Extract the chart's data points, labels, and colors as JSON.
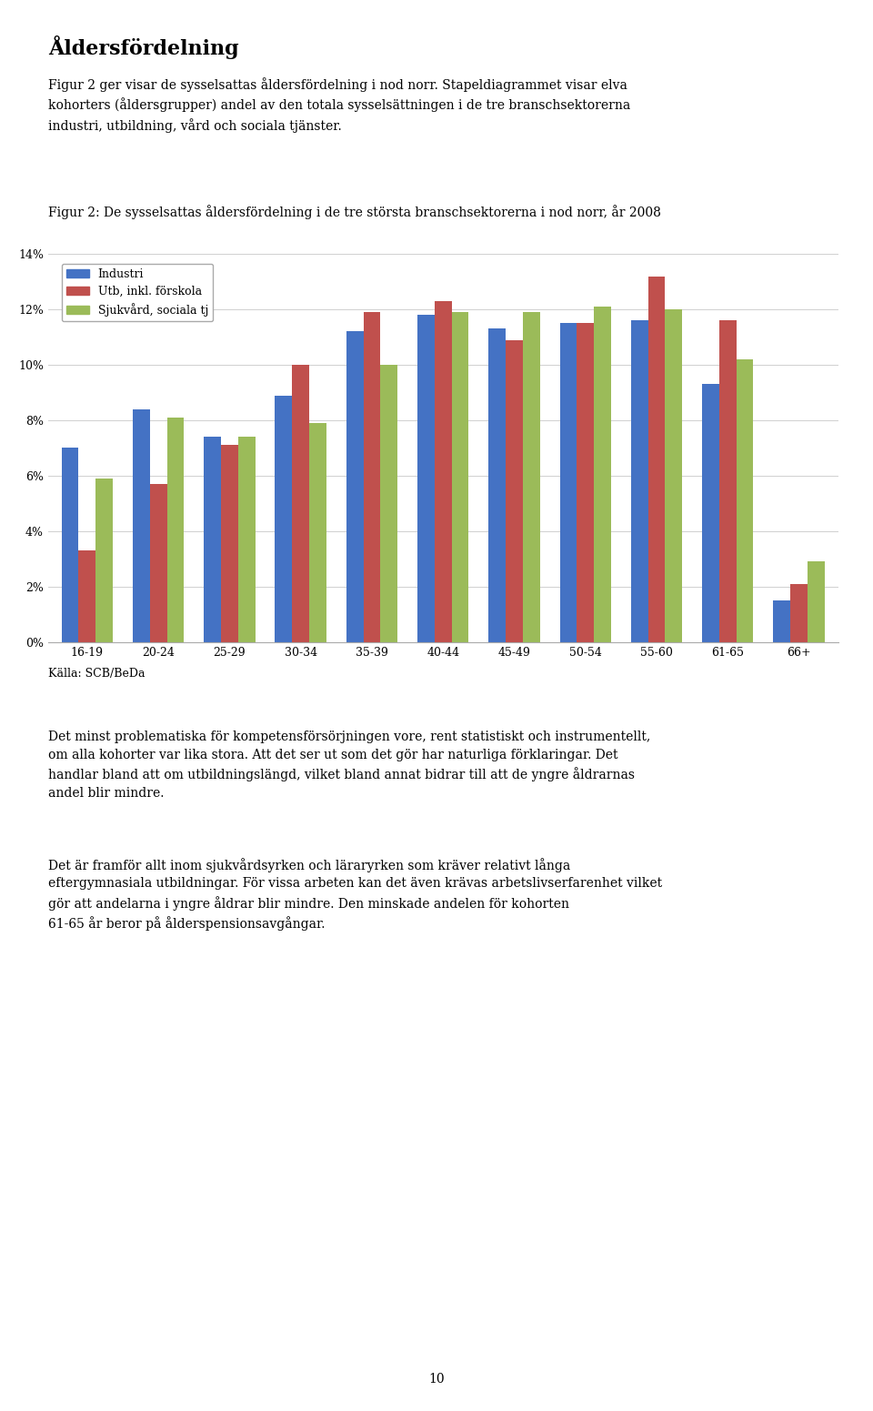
{
  "heading": "Åldersfördelning",
  "intro_text": "Figur 2 ger visar de sysselsattas åldersfördelning i nod norr. Stapeldiagrammet visar elva\nkohorters (åldersgrupper) andel av den totala sysselsättningen i de tre branschsektorerna\nindustri, utbildning, vård och sociala tjänster.",
  "chart_title": "Figur 2: De sysselsattas åldersfördelning i de tre största branschsektorerna i nod norr, år 2008",
  "categories": [
    "16-19",
    "20-24",
    "25-29",
    "30-34",
    "35-39",
    "40-44",
    "45-49",
    "50-54",
    "55-60",
    "61-65",
    "66+"
  ],
  "series": {
    "Industri": [
      0.07,
      0.084,
      0.074,
      0.089,
      0.112,
      0.118,
      0.113,
      0.115,
      0.116,
      0.093,
      0.015
    ],
    "Utb, inkl. förskola": [
      0.033,
      0.057,
      0.071,
      0.1,
      0.119,
      0.123,
      0.109,
      0.115,
      0.132,
      0.116,
      0.021
    ],
    "Sjukvård, sociala tj": [
      0.059,
      0.081,
      0.074,
      0.079,
      0.1,
      0.119,
      0.119,
      0.121,
      0.12,
      0.102,
      0.029
    ]
  },
  "colors": {
    "Industri": "#4472C4",
    "Utb, inkl. förskola": "#C0504D",
    "Sjukvård, sociala tj": "#9BBB59"
  },
  "ylim": [
    0,
    0.14
  ],
  "yticks": [
    0.0,
    0.02,
    0.04,
    0.06,
    0.08,
    0.1,
    0.12,
    0.14
  ],
  "ytick_labels": [
    "0%",
    "2%",
    "4%",
    "6%",
    "8%",
    "10%",
    "12%",
    "14%"
  ],
  "source": "Källa: SCB/BeDa",
  "body_text1": "Det minst problematiska för kompetensförsörjningen vore, rent statistiskt och instrumentellt,\nom alla kohorter var lika stora. Att det ser ut som det gör har naturliga förklaringar. Det\nhandlar bland att om utbildningslängd, vilket bland annat bidrar till att de yngre åldrarnas\nandel blir mindre.",
  "body_text2": "Det är framför allt inom sjukvårdsyrken och läraryrken som kräver relativt långa\neftergymnasiala utbildningar. För vissa arbeten kan det även krävas arbetslivserfarenhet vilket\ngör att andelarna i yngre åldrar blir mindre. Den minskade andelen för kohorten\n61-65 år beror på ålderspensionsavgångar.",
  "page_number": "10",
  "background_color": "#ffffff"
}
